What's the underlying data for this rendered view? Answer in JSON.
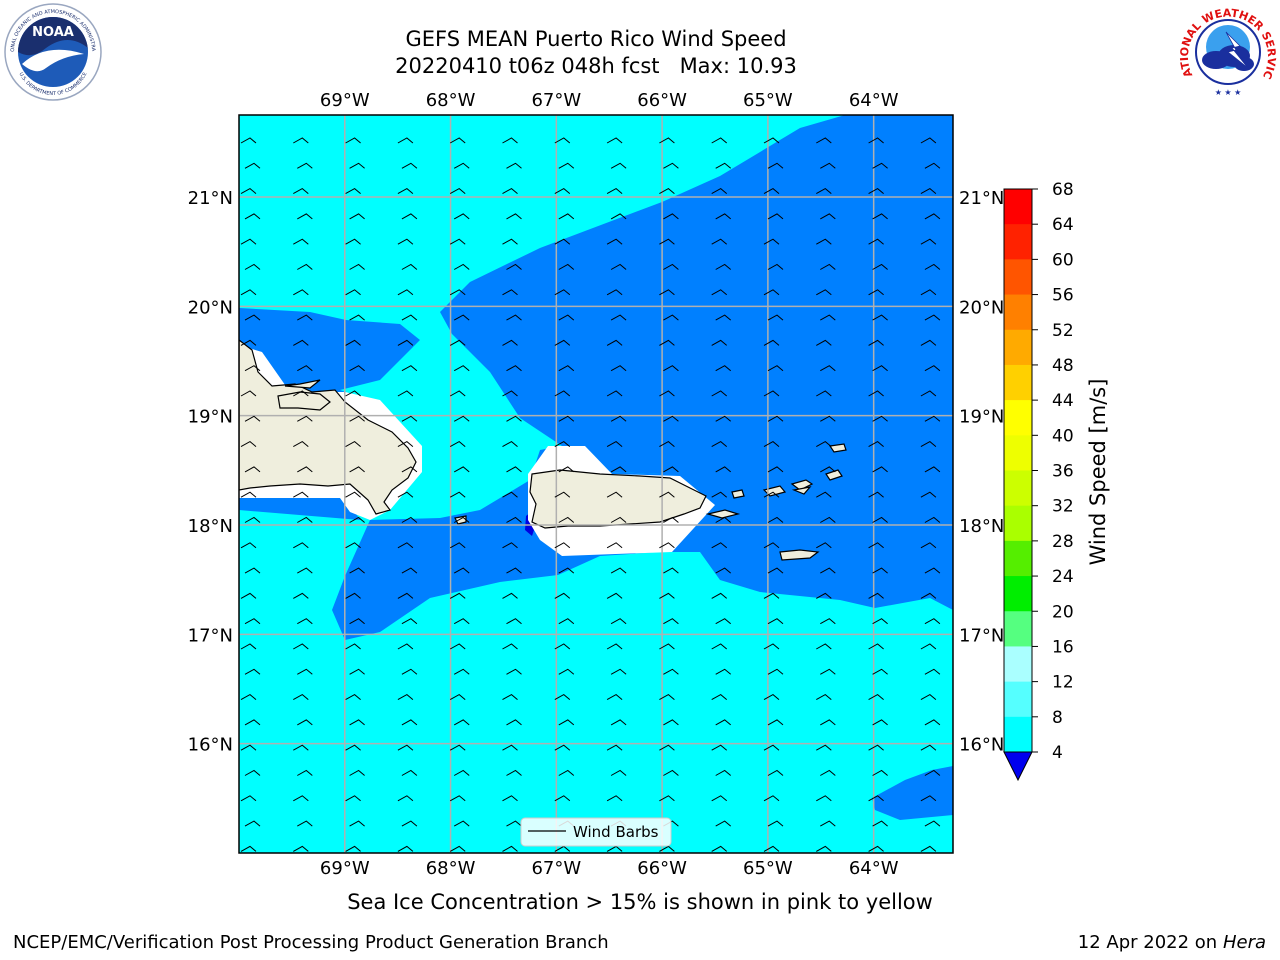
{
  "header": {
    "title_line1": "GEFS MEAN Puerto Rico Wind Speed",
    "title_line2": "20220410 t06z 048h fcst   Max: 10.93"
  },
  "logos": {
    "noaa_text": "NOAA",
    "noaa_ring_top": "NATIONAL OCEANIC AND ATMOSPHERIC ADMINISTRATION",
    "noaa_ring_bottom": "U.S. DEPARTMENT OF COMMERCE",
    "nws_ring": "NATIONAL WEATHER SERVICE"
  },
  "map": {
    "lon_labels": [
      "69°W",
      "68°W",
      "67°W",
      "66°W",
      "65°W",
      "64°W"
    ],
    "lat_labels": [
      "21°N",
      "20°N",
      "19°N",
      "18°N",
      "17°N",
      "16°N"
    ],
    "lon_range": [
      -70.0,
      -63.25
    ],
    "lat_range": [
      15.0,
      21.75
    ],
    "colors": {
      "band_4_8": "#0080ff",
      "band_8_12": "#00ffff",
      "below_4": "#0000e0",
      "land": "#efeedd",
      "grid": "#b0b0b0"
    },
    "legend_label": "Wind Barbs"
  },
  "colorbar": {
    "label": "Wind Speed [m/s]",
    "ticks": [
      "68",
      "64",
      "60",
      "56",
      "52",
      "48",
      "44",
      "40",
      "36",
      "32",
      "28",
      "24",
      "20",
      "16",
      "12",
      "8",
      "4"
    ],
    "colors": [
      "#ff0000",
      "#ff2200",
      "#ff5500",
      "#ff8000",
      "#ffaa00",
      "#ffd000",
      "#ffff00",
      "#eeff00",
      "#ccff00",
      "#aaff00",
      "#55ee00",
      "#00ee00",
      "#55ff80",
      "#aaffff",
      "#55ffff",
      "#00ffff",
      "#0080ff"
    ],
    "extend_color": "#0000ee"
  },
  "subtitle": "Sea Ice Concentration > 15% is shown in pink to yellow",
  "footer": {
    "left": "NCEP/EMC/Verification Post Processing Product Generation Branch",
    "right_date": "12 Apr 2022 on ",
    "right_host": "Hera"
  }
}
